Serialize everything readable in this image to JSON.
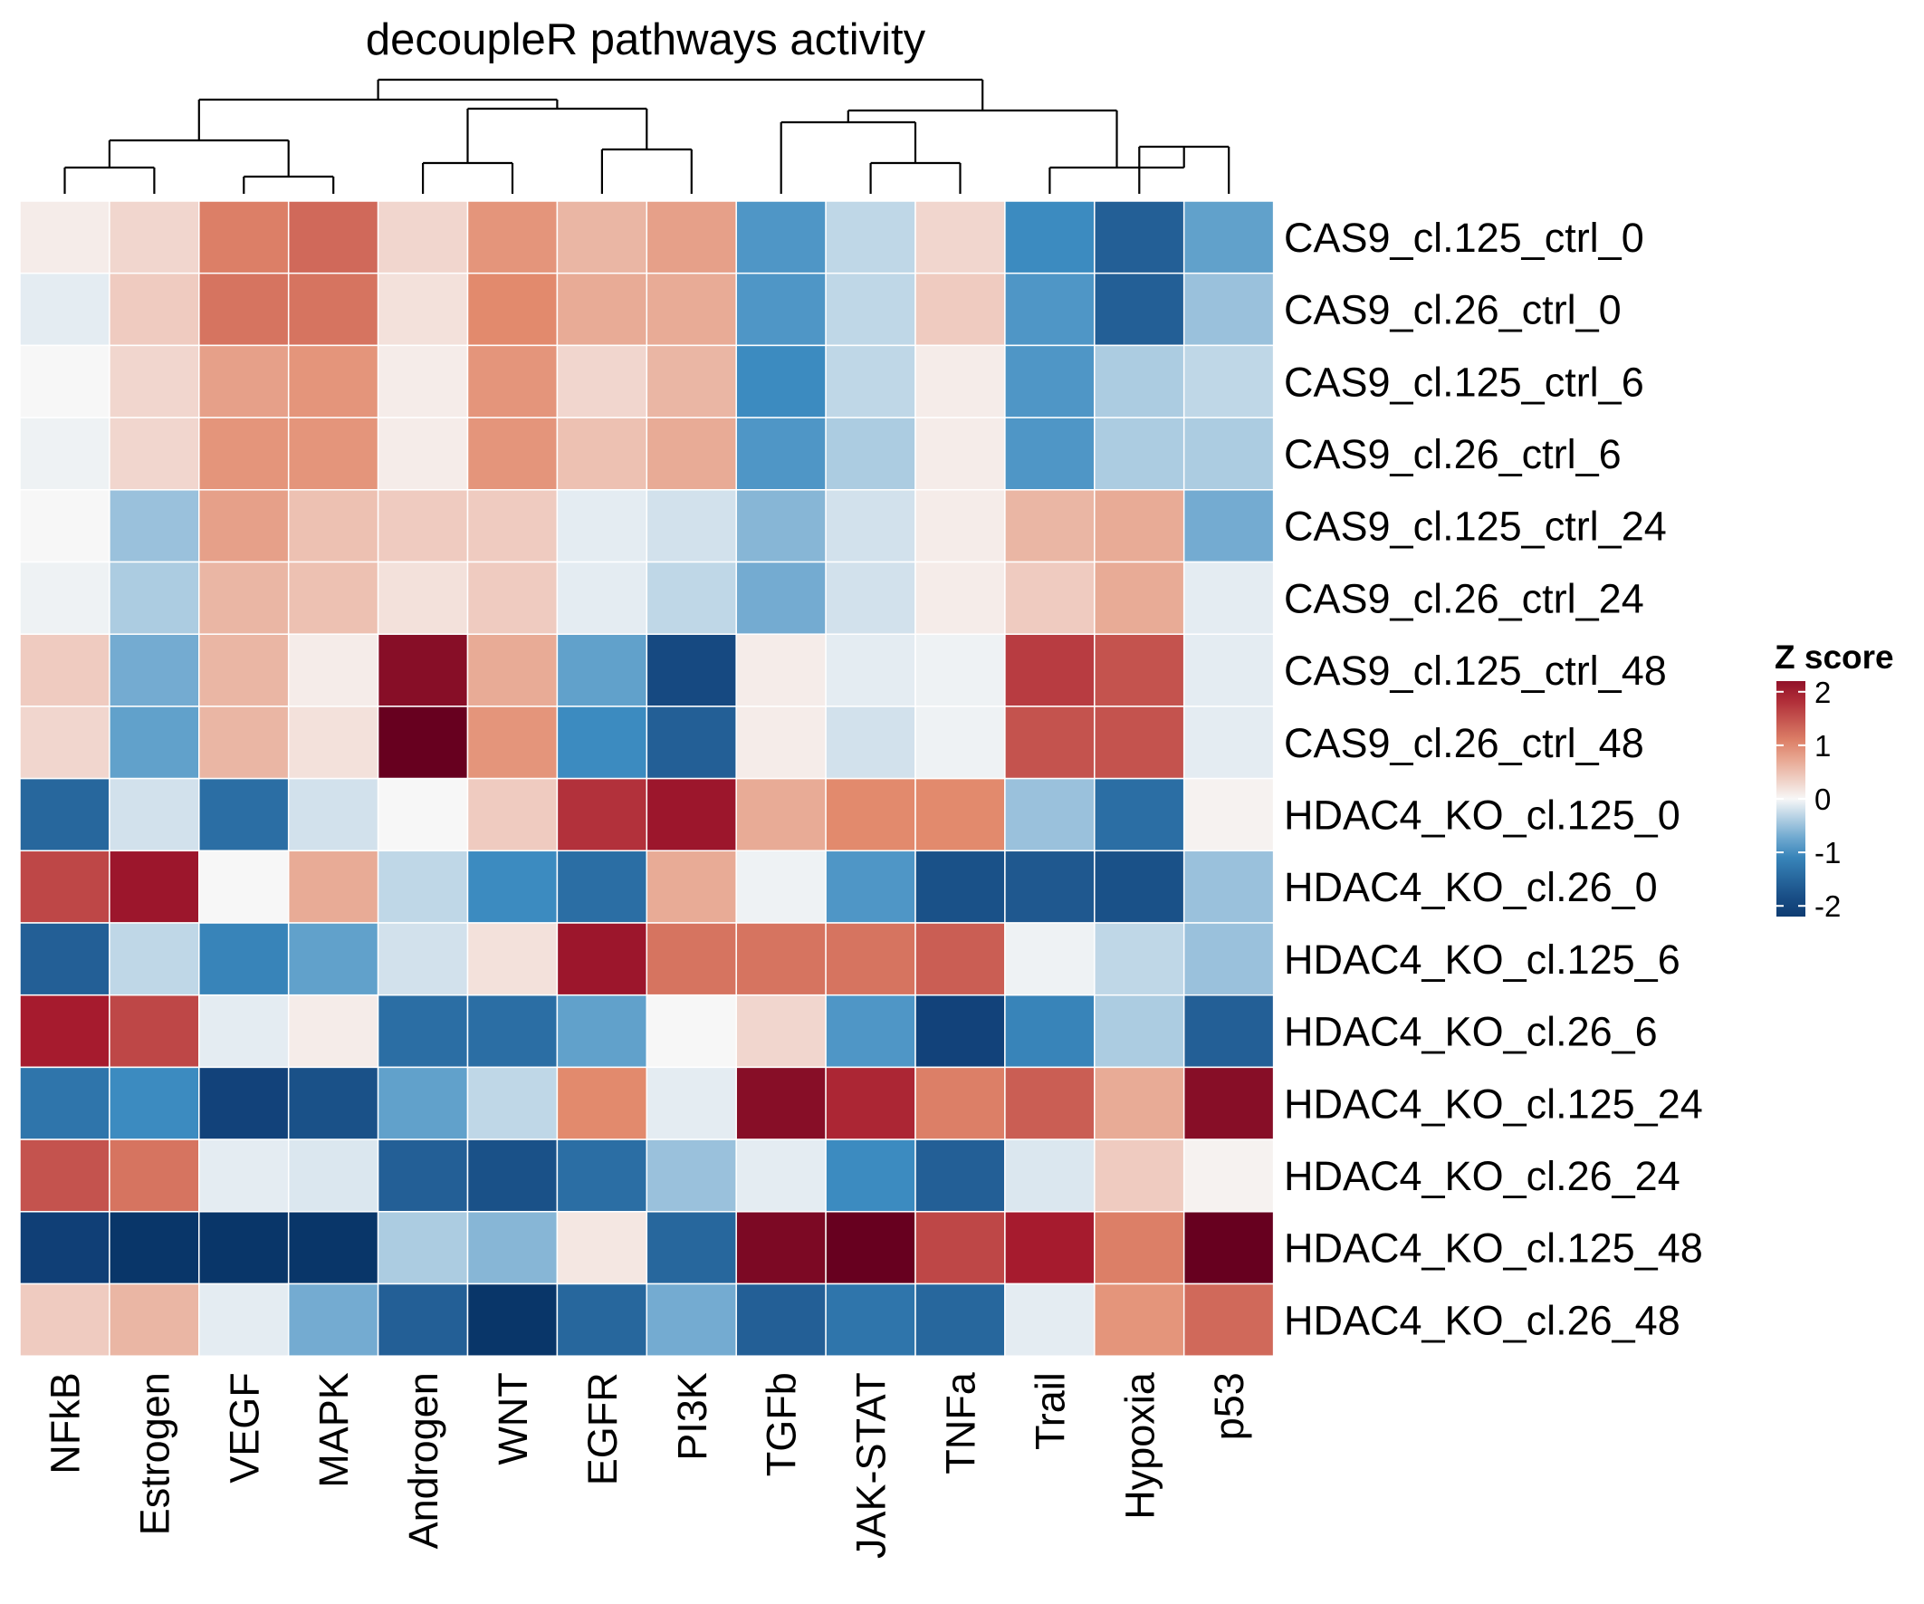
{
  "chart_data": {
    "type": "heatmap",
    "title": "decoupleR pathways activity",
    "columns": [
      "NFkB",
      "Estrogen",
      "VEGF",
      "MAPK",
      "Androgen",
      "WNT",
      "EGFR",
      "PI3K",
      "TGFb",
      "JAK-STAT",
      "TNFa",
      "Trail",
      "Hypoxia",
      "p53"
    ],
    "rows": [
      "CAS9_cl.125_ctrl_0",
      "CAS9_cl.26_ctrl_0",
      "CAS9_cl.125_ctrl_6",
      "CAS9_cl.26_ctrl_6",
      "CAS9_cl.125_ctrl_24",
      "CAS9_cl.26_ctrl_24",
      "CAS9_cl.125_ctrl_48",
      "CAS9_cl.26_ctrl_48",
      "HDAC4_KO_cl.125_0",
      "HDAC4_KO_cl.26_0",
      "HDAC4_KO_cl.125_6",
      "HDAC4_KO_cl.26_6",
      "HDAC4_KO_cl.125_24",
      "HDAC4_KO_cl.26_24",
      "HDAC4_KO_cl.125_48",
      "HDAC4_KO_cl.26_48"
    ],
    "values": [
      [
        0.1,
        0.3,
        1.1,
        1.3,
        0.3,
        0.9,
        0.6,
        0.8,
        -0.9,
        -0.3,
        0.3,
        -1.0,
        -1.6,
        -0.8
      ],
      [
        -0.1,
        0.4,
        1.2,
        1.2,
        0.2,
        1.0,
        0.7,
        0.7,
        -0.9,
        -0.3,
        0.4,
        -0.9,
        -1.6,
        -0.5
      ],
      [
        0.0,
        0.3,
        0.8,
        0.9,
        0.1,
        0.9,
        0.3,
        0.6,
        -1.0,
        -0.3,
        0.1,
        -0.9,
        -0.4,
        -0.3
      ],
      [
        -0.05,
        0.3,
        0.9,
        0.9,
        0.1,
        0.9,
        0.5,
        0.7,
        -0.9,
        -0.4,
        0.1,
        -0.9,
        -0.4,
        -0.4
      ],
      [
        0.0,
        -0.5,
        0.8,
        0.5,
        0.4,
        0.4,
        -0.1,
        -0.2,
        -0.6,
        -0.2,
        0.1,
        0.6,
        0.7,
        -0.7
      ],
      [
        -0.05,
        -0.4,
        0.6,
        0.5,
        0.2,
        0.4,
        -0.1,
        -0.3,
        -0.7,
        -0.2,
        0.1,
        0.4,
        0.7,
        -0.1
      ],
      [
        0.4,
        -0.7,
        0.6,
        0.1,
        2.3,
        0.7,
        -0.8,
        -1.9,
        0.1,
        -0.1,
        -0.05,
        1.7,
        1.5,
        -0.1
      ],
      [
        0.3,
        -0.8,
        0.6,
        0.2,
        2.6,
        0.9,
        -1.0,
        -1.6,
        0.1,
        -0.2,
        -0.05,
        1.5,
        1.5,
        -0.1
      ],
      [
        -1.5,
        -0.2,
        -1.4,
        -0.2,
        0.0,
        0.4,
        1.8,
        2.1,
        0.7,
        1.0,
        1.0,
        -0.5,
        -1.4,
        0.05
      ],
      [
        1.6,
        2.1,
        0.0,
        0.7,
        -0.3,
        -1.0,
        -1.4,
        0.7,
        -0.05,
        -0.9,
        -1.8,
        -1.7,
        -1.8,
        -0.5
      ],
      [
        -1.6,
        -0.3,
        -1.1,
        -0.8,
        -0.2,
        0.2,
        2.1,
        1.2,
        1.2,
        1.2,
        1.4,
        -0.05,
        -0.3,
        -0.5
      ],
      [
        2.0,
        1.6,
        -0.1,
        0.1,
        -1.4,
        -1.4,
        -0.8,
        0.0,
        0.3,
        -0.9,
        -2.0,
        -1.1,
        -0.4,
        -1.6
      ],
      [
        -1.3,
        -1.0,
        -2.0,
        -1.8,
        -0.8,
        -0.3,
        1.0,
        -0.1,
        2.3,
        1.9,
        1.1,
        1.4,
        0.7,
        2.3
      ],
      [
        1.5,
        1.2,
        -0.1,
        -0.15,
        -1.6,
        -1.8,
        -1.4,
        -0.5,
        -0.1,
        -1.0,
        -1.6,
        -0.15,
        0.4,
        0.05
      ],
      [
        -2.1,
        -2.4,
        -2.4,
        -2.4,
        -0.4,
        -0.6,
        0.15,
        -1.5,
        2.4,
        2.6,
        1.6,
        2.0,
        1.1,
        2.6
      ],
      [
        0.4,
        0.6,
        -0.1,
        -0.7,
        -1.6,
        -2.4,
        -1.5,
        -0.7,
        -1.6,
        -1.3,
        -1.5,
        -0.1,
        0.9,
        1.3
      ]
    ],
    "legend": {
      "title": "Z score",
      "ticks": [
        2,
        1,
        0,
        -1,
        -2
      ],
      "tick_labels": [
        "2",
        "1",
        "0",
        "-1",
        "-2"
      ],
      "placement": "right"
    },
    "color_scale": {
      "domain": [
        -2.6,
        -2,
        -1,
        0,
        1,
        2,
        2.6
      ],
      "colors": [
        "#053061",
        "#12427a",
        "#3c8bc0",
        "#f7f7f7",
        "#e28a6d",
        "#a61b2e",
        "#67001f"
      ]
    },
    "column_dendrogram": true
  }
}
